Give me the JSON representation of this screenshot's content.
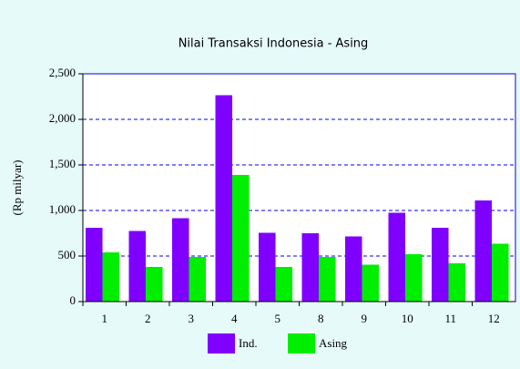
{
  "chart_data": {
    "type": "bar",
    "title": "Nilai Transaksi Indonesia - Asing",
    "y_label": "(Rp milyar)",
    "categories": [
      "1",
      "2",
      "3",
      "4",
      "5",
      "8",
      "9",
      "10",
      "11",
      "12"
    ],
    "series": [
      {
        "name": "Ind.",
        "color": "#7f00ff",
        "values": [
          810,
          775,
          915,
          2265,
          755,
          750,
          715,
          975,
          810,
          1110
        ]
      },
      {
        "name": "Asing",
        "color": "#00ee00",
        "values": [
          540,
          380,
          490,
          1390,
          380,
          490,
          405,
          520,
          420,
          635
        ]
      }
    ],
    "ylim": [
      0,
      2500
    ],
    "yticks": [
      0,
      500,
      {
        "value": 1000,
        "label": "1,000"
      },
      {
        "value": 1500,
        "label": "1,500"
      },
      {
        "value": 2000,
        "label": "2,000"
      },
      {
        "value": 2500,
        "label": "2,500"
      }
    ],
    "grid": true,
    "legend": "bottom"
  }
}
